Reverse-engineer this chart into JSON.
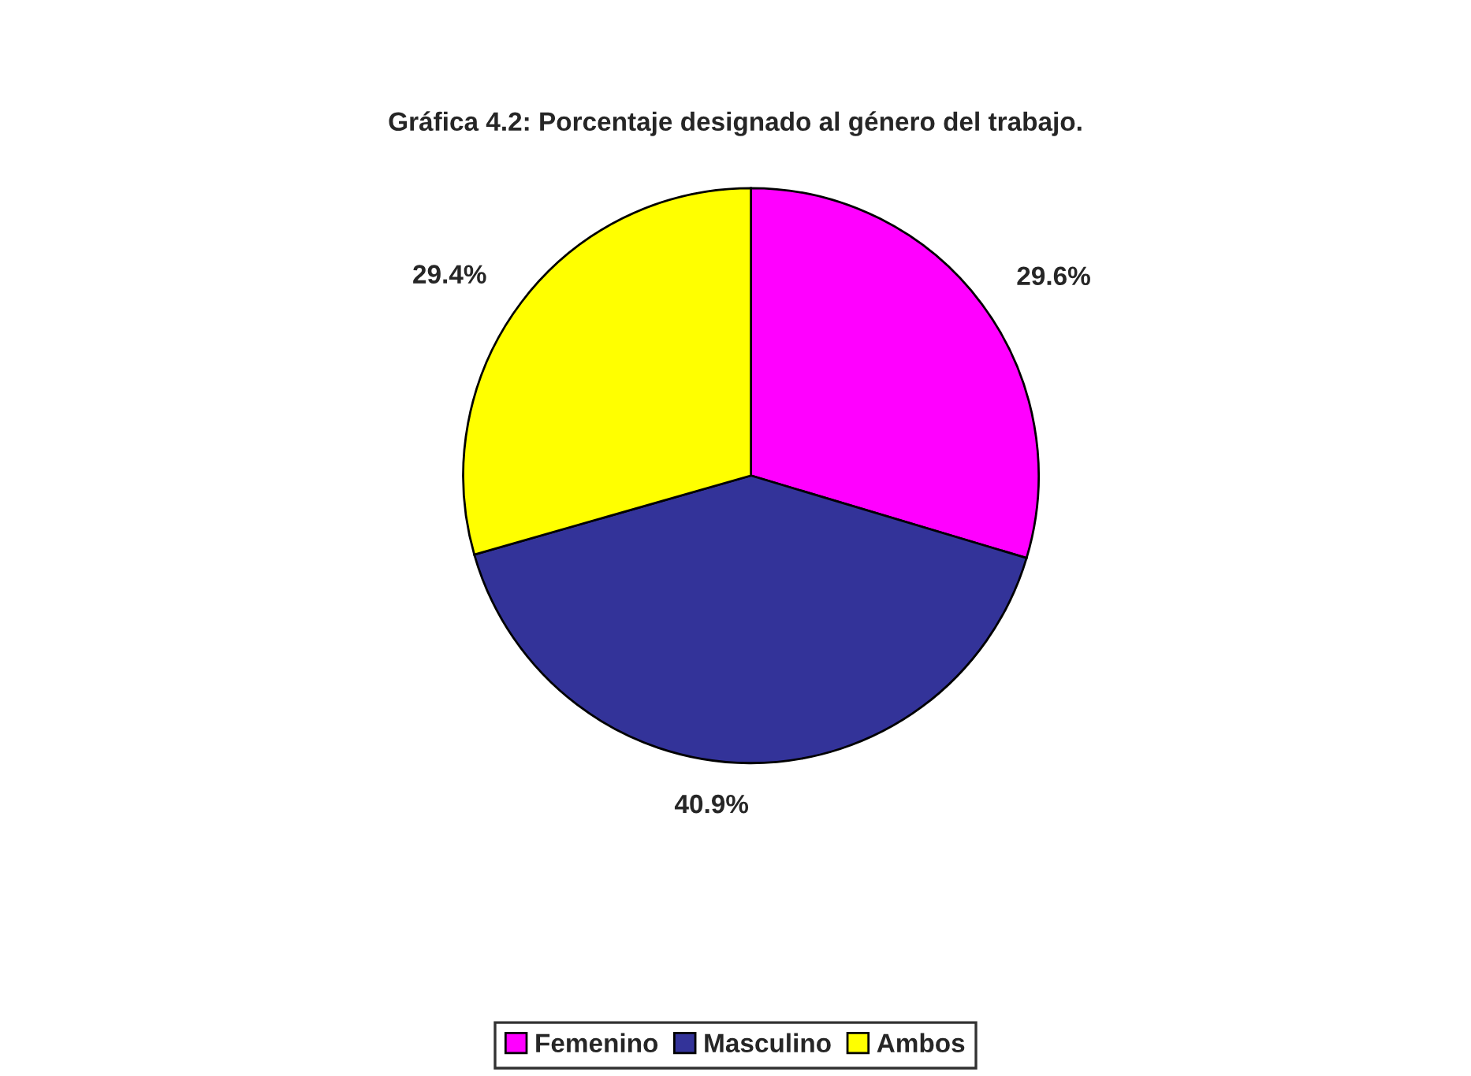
{
  "chart_data": {
    "type": "pie",
    "title": "Gráfica 4.2: Porcentaje designado al género del trabajo.",
    "categories": [
      "Femenino",
      "Masculino",
      "Ambos"
    ],
    "values": [
      29.6,
      40.9,
      29.4
    ],
    "colors": [
      "#ff00ff",
      "#333399",
      "#ffff00"
    ],
    "value_labels": [
      "29.6%",
      "40.9%",
      "29.4%"
    ],
    "legend": "bottom"
  }
}
